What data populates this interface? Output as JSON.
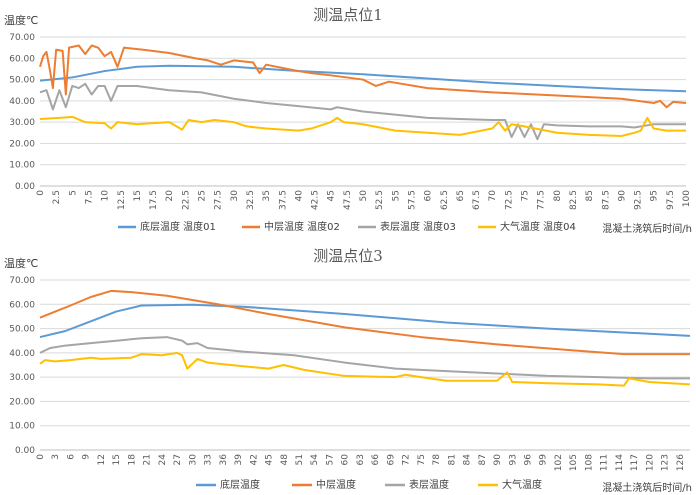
{
  "chart_data": [
    {
      "type": "line",
      "title": "测温点位1",
      "ylabel": "温度℃",
      "xlabel": "混凝土浇筑后时间/h",
      "ylim": [
        0,
        70
      ],
      "y_ticks": [
        "0.00",
        "10.00",
        "20.00",
        "30.00",
        "40.00",
        "50.00",
        "60.00",
        "70.00"
      ],
      "x_ticks": [
        "0",
        "2.5",
        "5",
        "7.5",
        "10",
        "12.5",
        "15",
        "17.5",
        "20",
        "22.5",
        "25",
        "27.5",
        "30",
        "32.5",
        "35",
        "37.5",
        "40",
        "42.5",
        "45",
        "47.5",
        "50",
        "52.5",
        "55",
        "57.5",
        "60",
        "62.5",
        "65",
        "67.5",
        "70",
        "72.5",
        "75",
        "77.5",
        "80",
        "82.5",
        "85",
        "87.5",
        "90",
        "92.5",
        "95",
        "97.5",
        "100"
      ],
      "xlim": [
        0,
        100
      ],
      "grid": true,
      "legend": "bottom",
      "series": [
        {
          "name": "底层温度 温度01",
          "color": "#5b9bd5",
          "points": [
            [
              0,
              49.5
            ],
            [
              5,
              51
            ],
            [
              10,
              54
            ],
            [
              15,
              56
            ],
            [
              20,
              56.5
            ],
            [
              30,
              56
            ],
            [
              40,
              54
            ],
            [
              50,
              52.5
            ],
            [
              60,
              50.5
            ],
            [
              70,
              48.5
            ],
            [
              80,
              47
            ],
            [
              90,
              45.5
            ],
            [
              100,
              44.5
            ]
          ]
        },
        {
          "name": "中层温度 温度02",
          "color": "#ed7d31",
          "points": [
            [
              0,
              56
            ],
            [
              0.5,
              61
            ],
            [
              1,
              63
            ],
            [
              1.5,
              55
            ],
            [
              2,
              46
            ],
            [
              2.5,
              64
            ],
            [
              3.5,
              63.5
            ],
            [
              4,
              43
            ],
            [
              4.5,
              65
            ],
            [
              6,
              66
            ],
            [
              7,
              62
            ],
            [
              8,
              66
            ],
            [
              9,
              65
            ],
            [
              10,
              61
            ],
            [
              11,
              63
            ],
            [
              12,
              56
            ],
            [
              13,
              65
            ],
            [
              16,
              64
            ],
            [
              20,
              62.5
            ],
            [
              24,
              60
            ],
            [
              26,
              59
            ],
            [
              28,
              57
            ],
            [
              30,
              59
            ],
            [
              33,
              58
            ],
            [
              34,
              53
            ],
            [
              35,
              57
            ],
            [
              40,
              54
            ],
            [
              42,
              53
            ],
            [
              45,
              52
            ],
            [
              50,
              50
            ],
            [
              52,
              47
            ],
            [
              54,
              49
            ],
            [
              60,
              46
            ],
            [
              65,
              45
            ],
            [
              70,
              44
            ],
            [
              80,
              42.5
            ],
            [
              90,
              41
            ],
            [
              95,
              39
            ],
            [
              96,
              40
            ],
            [
              97,
              37
            ],
            [
              98,
              39.5
            ],
            [
              100,
              39
            ]
          ]
        },
        {
          "name": "表层温度 温度03",
          "color": "#a5a5a5",
          "points": [
            [
              0,
              44
            ],
            [
              1,
              45
            ],
            [
              2,
              36
            ],
            [
              3,
              45
            ],
            [
              4,
              37
            ],
            [
              5,
              47
            ],
            [
              6,
              46
            ],
            [
              7,
              48
            ],
            [
              8,
              43
            ],
            [
              9,
              47
            ],
            [
              10,
              47
            ],
            [
              11,
              40
            ],
            [
              12,
              47
            ],
            [
              15,
              47
            ],
            [
              20,
              45
            ],
            [
              25,
              44
            ],
            [
              30,
              41
            ],
            [
              35,
              39
            ],
            [
              40,
              37.5
            ],
            [
              45,
              36
            ],
            [
              46,
              37
            ],
            [
              50,
              35
            ],
            [
              60,
              32
            ],
            [
              65,
              31.5
            ],
            [
              70,
              31
            ],
            [
              72,
              31
            ],
            [
              73,
              23
            ],
            [
              74,
              29
            ],
            [
              75,
              23
            ],
            [
              76,
              29
            ],
            [
              77,
              22
            ],
            [
              78,
              29
            ],
            [
              80,
              28.5
            ],
            [
              85,
              28
            ],
            [
              90,
              28
            ],
            [
              92,
              27.5
            ],
            [
              95,
              29
            ],
            [
              100,
              29
            ]
          ]
        },
        {
          "name": "大气温度 温度04",
          "color": "#ffc000",
          "points": [
            [
              0,
              31.5
            ],
            [
              3,
              32
            ],
            [
              5,
              32.5
            ],
            [
              7,
              30
            ],
            [
              10,
              29.5
            ],
            [
              11,
              27
            ],
            [
              12,
              30
            ],
            [
              15,
              29
            ],
            [
              20,
              30
            ],
            [
              22,
              26.5
            ],
            [
              23,
              31
            ],
            [
              25,
              30
            ],
            [
              27,
              31
            ],
            [
              30,
              30
            ],
            [
              32,
              28
            ],
            [
              35,
              27
            ],
            [
              40,
              26
            ],
            [
              42,
              27
            ],
            [
              45,
              30
            ],
            [
              46,
              32
            ],
            [
              47,
              30
            ],
            [
              50,
              29
            ],
            [
              55,
              26
            ],
            [
              60,
              25
            ],
            [
              65,
              24
            ],
            [
              70,
              27
            ],
            [
              71,
              30
            ],
            [
              72,
              26
            ],
            [
              73,
              29
            ],
            [
              75,
              28
            ],
            [
              80,
              25
            ],
            [
              85,
              24
            ],
            [
              90,
              23.5
            ],
            [
              92,
              25
            ],
            [
              93,
              26
            ],
            [
              94,
              32
            ],
            [
              95,
              27
            ],
            [
              97,
              26
            ],
            [
              100,
              26
            ]
          ]
        }
      ]
    },
    {
      "type": "line",
      "title": "测温点位3",
      "ylabel": "温度℃",
      "xlabel": "混凝土浇筑后时间/h",
      "ylim": [
        0,
        70
      ],
      "y_ticks": [
        "0.00",
        "10.00",
        "20.00",
        "30.00",
        "40.00",
        "50.00",
        "60.00",
        "70.00"
      ],
      "x_ticks": [
        "0",
        "3",
        "6",
        "9",
        "12",
        "15",
        "18",
        "21",
        "24",
        "27",
        "30",
        "33",
        "36",
        "39",
        "42",
        "45",
        "48",
        "51",
        "54",
        "57",
        "60",
        "63",
        "66",
        "69",
        "72",
        "75",
        "78",
        "81",
        "84",
        "87",
        "90",
        "93",
        "96",
        "99",
        "102",
        "105",
        "108",
        "111",
        "114",
        "117",
        "120",
        "123",
        "126"
      ],
      "xlim": [
        0,
        128
      ],
      "grid": true,
      "legend": "bottom",
      "series": [
        {
          "name": "底层温度",
          "color": "#5b9bd5",
          "points": [
            [
              0,
              46.5
            ],
            [
              5,
              49
            ],
            [
              10,
              53
            ],
            [
              15,
              57
            ],
            [
              20,
              59.5
            ],
            [
              30,
              59.8
            ],
            [
              40,
              59
            ],
            [
              60,
              56
            ],
            [
              80,
              52.5
            ],
            [
              100,
              50
            ],
            [
              128,
              47
            ]
          ]
        },
        {
          "name": "中层温度",
          "color": "#ed7d31",
          "points": [
            [
              0,
              54.5
            ],
            [
              3,
              57
            ],
            [
              6,
              59.5
            ],
            [
              10,
              63
            ],
            [
              14,
              65.5
            ],
            [
              18,
              65
            ],
            [
              25,
              63.5
            ],
            [
              35,
              60
            ],
            [
              45,
              56
            ],
            [
              60,
              50.5
            ],
            [
              75,
              46.5
            ],
            [
              90,
              43.5
            ],
            [
              105,
              41
            ],
            [
              115,
              39.5
            ],
            [
              128,
              39.5
            ]
          ]
        },
        {
          "name": "表层温度",
          "color": "#a5a5a5",
          "points": [
            [
              0,
              40
            ],
            [
              2,
              42
            ],
            [
              5,
              43
            ],
            [
              10,
              44
            ],
            [
              15,
              45
            ],
            [
              20,
              46
            ],
            [
              25,
              46.5
            ],
            [
              28,
              45
            ],
            [
              29,
              43.5
            ],
            [
              31,
              44
            ],
            [
              33,
              42
            ],
            [
              40,
              40.5
            ],
            [
              50,
              39
            ],
            [
              60,
              36
            ],
            [
              70,
              33.5
            ],
            [
              80,
              32.5
            ],
            [
              90,
              31.5
            ],
            [
              100,
              30.5
            ],
            [
              110,
              30
            ],
            [
              120,
              29.5
            ],
            [
              128,
              29.5
            ]
          ]
        },
        {
          "name": "大气温度",
          "color": "#ffc000",
          "points": [
            [
              0,
              35.5
            ],
            [
              1,
              37
            ],
            [
              3,
              36.5
            ],
            [
              6,
              37
            ],
            [
              10,
              38
            ],
            [
              12,
              37.5
            ],
            [
              18,
              38
            ],
            [
              20,
              39.5
            ],
            [
              24,
              39
            ],
            [
              27,
              40
            ],
            [
              28,
              39
            ],
            [
              29,
              33.5
            ],
            [
              31,
              37.5
            ],
            [
              33,
              36
            ],
            [
              40,
              34.5
            ],
            [
              45,
              33.5
            ],
            [
              48,
              35
            ],
            [
              52,
              33
            ],
            [
              60,
              30.5
            ],
            [
              70,
              30
            ],
            [
              72,
              31
            ],
            [
              75,
              30
            ],
            [
              80,
              28.5
            ],
            [
              90,
              28.5
            ],
            [
              92,
              32
            ],
            [
              93,
              28
            ],
            [
              100,
              27.5
            ],
            [
              110,
              27
            ],
            [
              115,
              26.5
            ],
            [
              116,
              29.5
            ],
            [
              120,
              28
            ],
            [
              128,
              27
            ]
          ]
        }
      ]
    }
  ]
}
